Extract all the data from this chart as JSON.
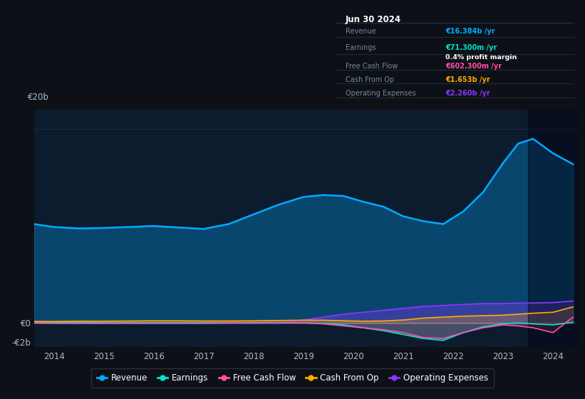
{
  "bg_color": "#0d1117",
  "chart_bg": "#0d1b2e",
  "top_bg": "#0d1117",
  "years": [
    2013.6,
    2014.0,
    2014.5,
    2015.0,
    2015.5,
    2016.0,
    2016.5,
    2017.0,
    2017.5,
    2018.0,
    2018.5,
    2019.0,
    2019.4,
    2019.8,
    2020.2,
    2020.6,
    2021.0,
    2021.4,
    2021.8,
    2022.2,
    2022.6,
    2023.0,
    2023.3,
    2023.6,
    2024.0,
    2024.4
  ],
  "revenue": [
    10.2,
    9.9,
    9.75,
    9.8,
    9.9,
    10.0,
    9.85,
    9.7,
    10.2,
    11.2,
    12.2,
    13.0,
    13.2,
    13.1,
    12.5,
    12.0,
    11.0,
    10.5,
    10.2,
    11.5,
    13.5,
    16.5,
    18.5,
    19.0,
    17.5,
    16.384
  ],
  "earnings": [
    0.05,
    0.05,
    0.05,
    0.02,
    0.02,
    0.02,
    0.02,
    0.02,
    0.0,
    0.0,
    0.02,
    0.02,
    -0.05,
    -0.2,
    -0.5,
    -0.8,
    -1.2,
    -1.6,
    -1.8,
    -1.0,
    -0.4,
    -0.1,
    0.0,
    -0.1,
    -0.2,
    0.07
  ],
  "free_cash_flow": [
    0.0,
    -0.05,
    -0.05,
    -0.05,
    -0.05,
    -0.05,
    -0.05,
    -0.05,
    0.0,
    0.05,
    0.05,
    0.02,
    -0.1,
    -0.3,
    -0.5,
    -0.7,
    -1.0,
    -1.5,
    -1.6,
    -1.0,
    -0.5,
    -0.2,
    -0.3,
    -0.5,
    -1.0,
    0.6
  ],
  "cash_from_op": [
    0.15,
    0.15,
    0.18,
    0.18,
    0.2,
    0.22,
    0.22,
    0.2,
    0.2,
    0.22,
    0.25,
    0.28,
    0.28,
    0.22,
    0.18,
    0.2,
    0.3,
    0.5,
    0.6,
    0.7,
    0.75,
    0.8,
    0.9,
    1.0,
    1.1,
    1.653
  ],
  "op_expenses": [
    0.0,
    0.0,
    0.0,
    0.0,
    0.0,
    0.0,
    0.0,
    0.0,
    0.0,
    0.0,
    0.0,
    0.3,
    0.6,
    0.9,
    1.1,
    1.3,
    1.5,
    1.7,
    1.8,
    1.9,
    2.0,
    2.0,
    2.05,
    2.05,
    2.1,
    2.26
  ],
  "revenue_color": "#00aaff",
  "earnings_color": "#00e5cc",
  "fcf_color": "#ff4da6",
  "cfo_color": "#ffaa00",
  "opex_color": "#8833ff",
  "info_box": {
    "date": "Jun 30 2024",
    "revenue_label": "Revenue",
    "revenue_val": "€16.384b /yr",
    "revenue_color": "#00aaff",
    "earnings_label": "Earnings",
    "earnings_val": "€71.300m /yr",
    "earnings_color": "#00e5cc",
    "profit_margin": "0.4% profit margin",
    "fcf_label": "Free Cash Flow",
    "fcf_val": "€602.300m /yr",
    "fcf_color": "#ff4da6",
    "cfo_label": "Cash From Op",
    "cfo_val": "€1.653b /yr",
    "cfo_color": "#ffaa00",
    "opex_label": "Operating Expenses",
    "opex_val": "€2.260b /yr",
    "opex_color": "#8833ff"
  },
  "legend_items": [
    {
      "label": "Revenue",
      "color": "#00aaff"
    },
    {
      "label": "Earnings",
      "color": "#00e5cc"
    },
    {
      "label": "Free Cash Flow",
      "color": "#ff4da6"
    },
    {
      "label": "Cash From Op",
      "color": "#ffaa00"
    },
    {
      "label": "Operating Expenses",
      "color": "#8833ff"
    }
  ]
}
